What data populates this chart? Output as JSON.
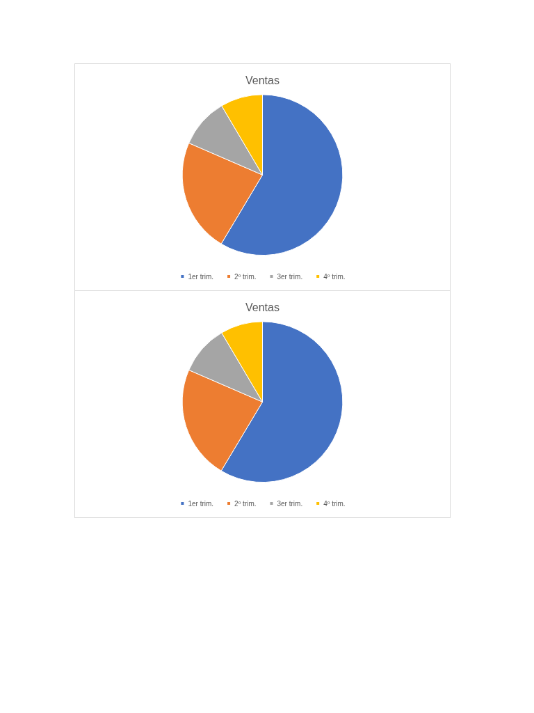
{
  "chart_data": [
    {
      "type": "pie",
      "title": "Ventas",
      "categories": [
        "1er trim.",
        "2º trim.",
        "3er trim.",
        "4º trim."
      ],
      "values": [
        58.6,
        22.9,
        10,
        8.5
      ],
      "colors": [
        "#4472c4",
        "#ed7d31",
        "#a5a5a5",
        "#ffc000"
      ],
      "legend": "bottom"
    },
    {
      "type": "pie",
      "title": "Ventas",
      "categories": [
        "1er trim.",
        "2º trim.",
        "3er trim.",
        "4º trim."
      ],
      "values": [
        58.6,
        22.9,
        10,
        8.5
      ],
      "colors": [
        "#4472c4",
        "#ed7d31",
        "#a5a5a5",
        "#ffc000"
      ],
      "legend": "bottom"
    }
  ]
}
